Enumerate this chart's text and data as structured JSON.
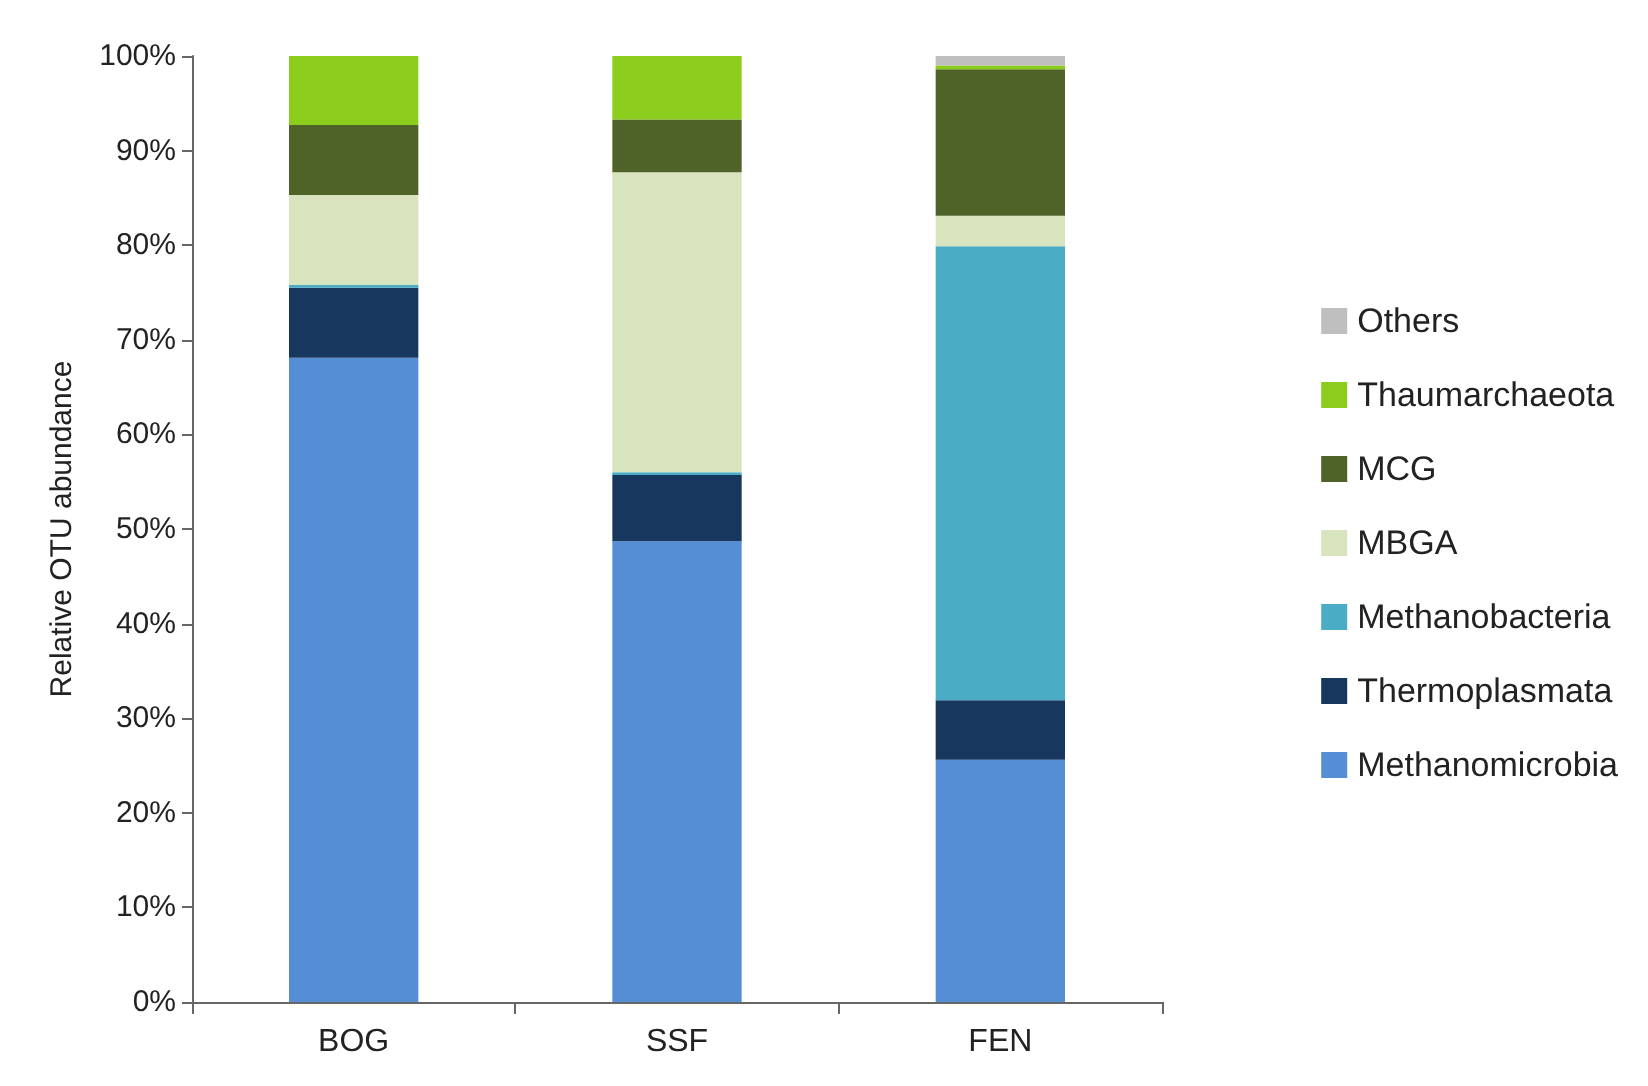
{
  "chart_data": {
    "type": "bar",
    "stacked": true,
    "ylabel": "Relative OTU abundance",
    "categories": [
      "BOG",
      "SSF",
      "FEN"
    ],
    "series": [
      {
        "name": "Methanomicrobia",
        "color": "#558ed5",
        "values": [
          68.1,
          48.7,
          25.6
        ]
      },
      {
        "name": "Thermoplasmata",
        "color": "#17375e",
        "values": [
          7.4,
          7.0,
          6.3
        ]
      },
      {
        "name": "Methanobacteria",
        "color": "#4bacc6",
        "values": [
          0.3,
          0.3,
          48.0
        ]
      },
      {
        "name": "MBGA",
        "color": "#d7e4bd",
        "values": [
          9.5,
          31.7,
          3.2
        ]
      },
      {
        "name": "MCG",
        "color": "#4f6228",
        "values": [
          7.4,
          5.6,
          15.5
        ]
      },
      {
        "name": "Thaumarchaeota",
        "color": "#8ccc1c",
        "values": [
          7.3,
          6.7,
          0.4
        ]
      },
      {
        "name": "Others",
        "color": "#bfbfbf",
        "values": [
          0,
          0,
          1.0
        ]
      }
    ],
    "ylim": [
      0,
      100
    ],
    "yticks": [
      {
        "value": 0,
        "label": "0%"
      },
      {
        "value": 10,
        "label": "10%"
      },
      {
        "value": 20,
        "label": "20%"
      },
      {
        "value": 30,
        "label": "30%"
      },
      {
        "value": 40,
        "label": "40%"
      },
      {
        "value": 50,
        "label": "50%"
      },
      {
        "value": 60,
        "label": "60%"
      },
      {
        "value": 70,
        "label": "70%"
      },
      {
        "value": 80,
        "label": "80%"
      },
      {
        "value": 90,
        "label": "90%"
      },
      {
        "value": 100,
        "label": "100%"
      }
    ],
    "grid": false,
    "legend": "right"
  }
}
